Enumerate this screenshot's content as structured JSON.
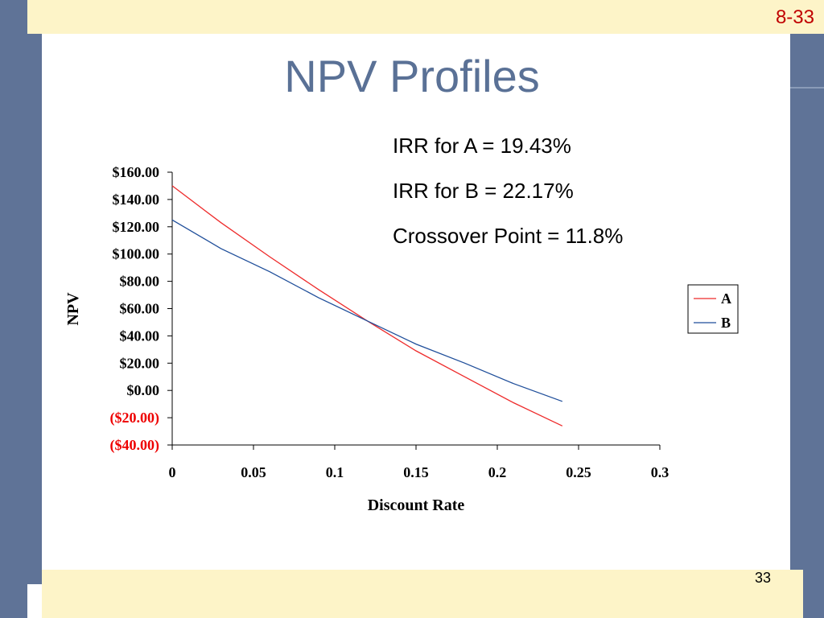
{
  "slide": {
    "number_top": "8-33",
    "title": "NPV Profiles",
    "number_bottom": "33",
    "notes": [
      "IRR for A = 19.43%",
      "IRR for B = 22.17%",
      "Crossover Point = 11.8%"
    ]
  },
  "colors": {
    "background": "#ffffff",
    "side_band": "#5f7397",
    "top_bottom_band": "#fdf4c8",
    "title": "#5a7196",
    "series_a": "#ee2b2b",
    "series_b": "#1f4e9a",
    "negative_tick": "#ee0000"
  },
  "chart_data": {
    "type": "line",
    "title": "",
    "xlabel": "Discount Rate",
    "ylabel": "NPV",
    "xlim": [
      0,
      0.3
    ],
    "ylim": [
      -40,
      160
    ],
    "x_ticks": [
      0,
      0.05,
      0.1,
      0.15,
      0.2,
      0.25,
      0.3
    ],
    "x_tick_labels": [
      "0",
      "0.05",
      "0.1",
      "0.15",
      "0.2",
      "0.25",
      "0.3"
    ],
    "y_ticks": [
      -40,
      -20,
      0,
      20,
      40,
      60,
      80,
      100,
      120,
      140,
      160
    ],
    "y_tick_labels": [
      "($40.00)",
      "($20.00)",
      "$0.00",
      "$20.00",
      "$40.00",
      "$60.00",
      "$80.00",
      "$100.00",
      "$120.00",
      "$140.00",
      "$160.00"
    ],
    "negative_labels_color": "#ee0000",
    "grid": false,
    "legend_position": "right",
    "series": [
      {
        "name": "A",
        "color": "#ee2b2b",
        "x": [
          0,
          0.03,
          0.06,
          0.09,
          0.12,
          0.15,
          0.18,
          0.21,
          0.24
        ],
        "y": [
          150,
          123,
          98,
          74,
          51,
          29,
          10,
          -9,
          -26
        ]
      },
      {
        "name": "B",
        "color": "#1f4e9a",
        "x": [
          0,
          0.03,
          0.06,
          0.09,
          0.12,
          0.15,
          0.18,
          0.21,
          0.24
        ],
        "y": [
          125,
          104,
          87,
          68,
          51,
          34,
          20,
          5,
          -8
        ]
      }
    ]
  }
}
